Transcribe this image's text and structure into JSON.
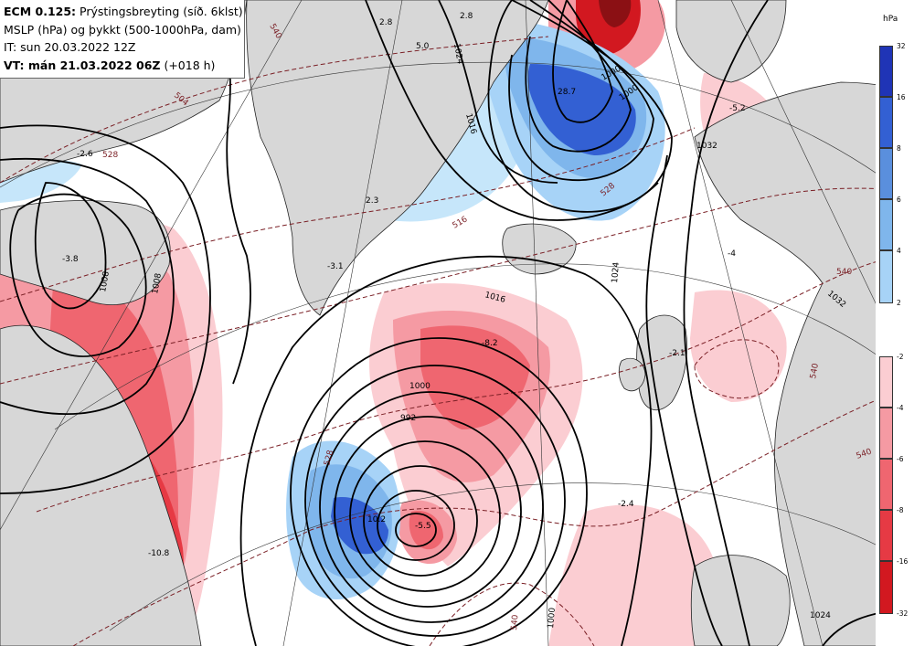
{
  "header": {
    "model": "ECM 0.125:",
    "title": " Prýstingsbreyting (síð. 6klst)",
    "line2": "MSLP (hPa) og þykkt (500-1000hPa, dam)",
    "init_time": "IT: sun 20.03.2022 12Z",
    "valid_label": "VT: mán 21.03.2022 06Z",
    "valid_offset": " (+018 h)"
  },
  "legend": {
    "unit": "hPa",
    "rise_colors": [
      "#c6e6fa",
      "#a7d3f7",
      "#7fb6ec",
      "#5a8fdd",
      "#3360d3",
      "#1f34b6"
    ],
    "rise_labels": [
      "32",
      "16",
      "8",
      "6",
      "4",
      "2"
    ],
    "fall_colors": [
      "#fbcdd2",
      "#f59aa3",
      "#ef6670",
      "#e63a44",
      "#d21820",
      "#8b1014"
    ],
    "fall_labels": [
      "-2",
      "-4",
      "-6",
      "-8",
      "-16",
      "-32"
    ]
  },
  "map_labels": {
    "isobars": [
      "1024",
      "1016",
      "1000",
      "992",
      "1008",
      "1024",
      "1032",
      "1000",
      "1008",
      "1032",
      "1000",
      "1016",
      "1000",
      "1024"
    ],
    "thickness": [
      "504",
      "516",
      "528",
      "528",
      "540",
      "540",
      "540",
      "540",
      "528",
      "540"
    ],
    "changes": [
      "2.8",
      "5.0",
      "2.8",
      "28.7",
      "2.3",
      "-3.8",
      "-3.1",
      "-2.6",
      "-5.2",
      "-4",
      "-2.1",
      "-8.2",
      "10.2",
      "-5.5",
      "-10.8",
      "-2.4"
    ]
  }
}
